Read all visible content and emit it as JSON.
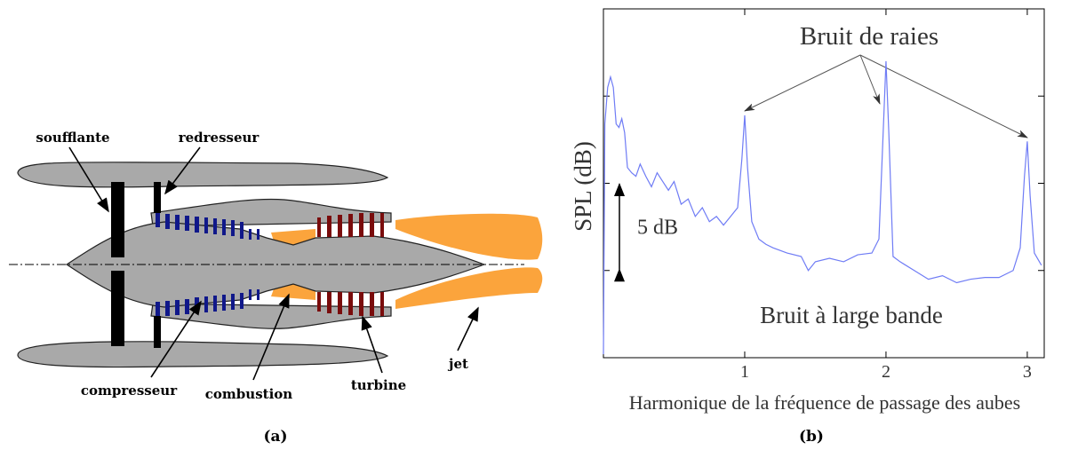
{
  "panel_a": {
    "labels": [
      "soufflante",
      "redresseur",
      "compresseur",
      "combustion",
      "turbine",
      "jet"
    ],
    "caption": "(a)"
  },
  "panel_b": {
    "caption": "(b)"
  },
  "chart_data": {
    "type": "line",
    "x_label": "Harmonique de la fréquence de passage des aubes",
    "y_label": "SPL (dB)",
    "annotations": [
      "Bruit de raies",
      "Bruit à large bande"
    ],
    "span_annotation": {
      "text": "5 dB",
      "from": 5,
      "to": 10
    },
    "x": [
      0.0,
      0.01,
      0.03,
      0.05,
      0.07,
      0.09,
      0.11,
      0.13,
      0.15,
      0.17,
      0.2,
      0.23,
      0.26,
      0.3,
      0.34,
      0.38,
      0.42,
      0.46,
      0.5,
      0.55,
      0.6,
      0.65,
      0.7,
      0.75,
      0.8,
      0.85,
      0.9,
      0.95,
      0.98,
      1.0,
      1.02,
      1.05,
      1.1,
      1.15,
      1.2,
      1.3,
      1.4,
      1.45,
      1.5,
      1.6,
      1.7,
      1.8,
      1.9,
      1.95,
      1.98,
      2.0,
      2.02,
      2.05,
      2.1,
      2.2,
      2.3,
      2.4,
      2.5,
      2.6,
      2.7,
      2.8,
      2.9,
      2.95,
      2.98,
      3.0,
      3.02,
      3.05,
      3.1
    ],
    "values": [
      0.2,
      13.4,
      15.5,
      16.1,
      15.5,
      13.4,
      13.2,
      13.7,
      12.9,
      10.9,
      10.6,
      10.4,
      11.1,
      10.4,
      9.8,
      10.6,
      10.1,
      9.6,
      10.1,
      8.8,
      9.1,
      8.1,
      8.6,
      7.8,
      8.1,
      7.6,
      8.1,
      8.6,
      11.4,
      13.9,
      10.9,
      7.8,
      6.8,
      6.5,
      6.3,
      6.0,
      5.8,
      5.0,
      5.5,
      5.7,
      5.5,
      5.9,
      6.0,
      6.8,
      12.9,
      17.0,
      12.9,
      5.8,
      5.5,
      5.0,
      4.5,
      4.7,
      4.3,
      4.5,
      4.6,
      4.6,
      5.0,
      6.3,
      10.4,
      12.4,
      9.3,
      6.0,
      5.3
    ],
    "color": "#6f7cf5",
    "xlim": [
      0,
      3.12
    ],
    "xticks": [
      1,
      2,
      3
    ],
    "ylim": [
      0,
      20
    ],
    "yticks": [
      5,
      10,
      15
    ],
    "ytick_labels": false
  }
}
